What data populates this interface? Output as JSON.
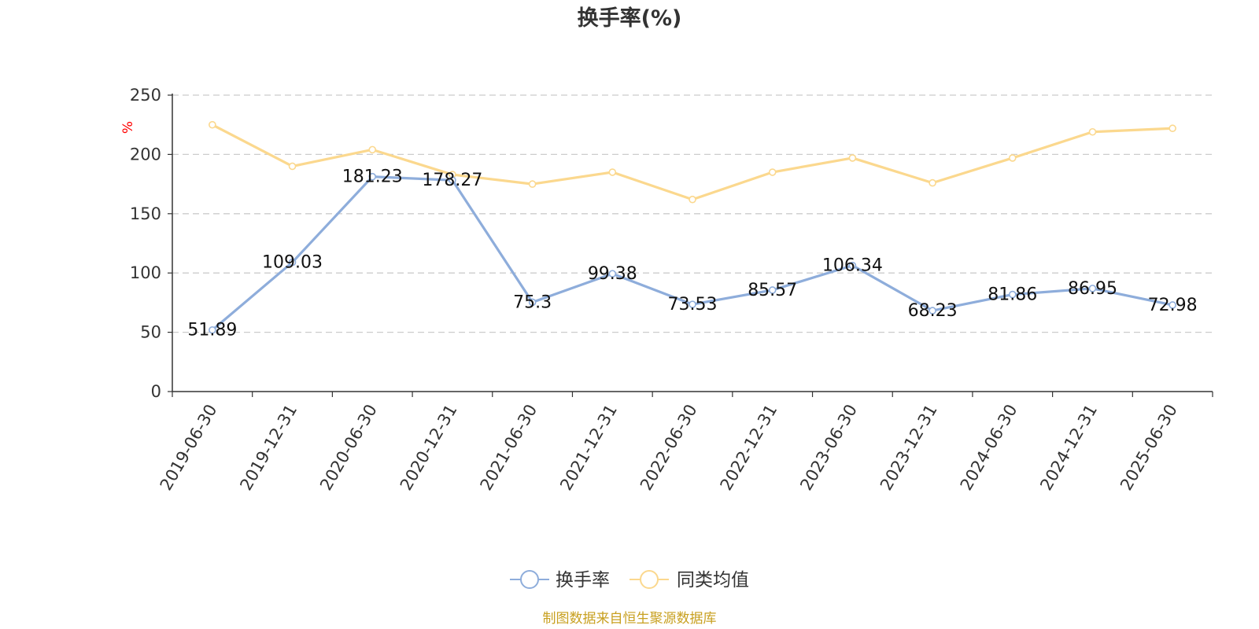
{
  "colors": {
    "series_turnover": "#8eaddb",
    "series_peer_avg": "#fbd88e",
    "axis": "#333333",
    "grid": "#cccccc",
    "unit": "#ff0000",
    "source": "#c8a020"
  },
  "chart_data": {
    "type": "line",
    "title": "换手率(%)",
    "ylabel": "%",
    "xlabel": "",
    "ylim": [
      0,
      250
    ],
    "yticks": [
      0,
      50,
      100,
      150,
      200,
      250
    ],
    "grid": true,
    "legend_position": "bottom-center",
    "categories": [
      "2019-06-30",
      "2019-12-31",
      "2020-06-30",
      "2020-12-31",
      "2021-06-30",
      "2021-12-31",
      "2022-06-30",
      "2022-12-31",
      "2023-06-30",
      "2023-12-31",
      "2024-06-30",
      "2024-12-31",
      "2025-06-30"
    ],
    "series": [
      {
        "name": "换手率",
        "values": [
          51.89,
          109.03,
          181.23,
          178.27,
          75.3,
          99.38,
          73.53,
          85.57,
          106.34,
          68.23,
          81.86,
          86.95,
          72.98
        ],
        "data_labels": [
          "51.89",
          "109.03",
          "181.23",
          "178.27",
          "75.3",
          "99.38",
          "73.53",
          "85.57",
          "106.34",
          "68.23",
          "81.86",
          "86.95",
          "72.98"
        ]
      },
      {
        "name": "同类均值",
        "values": [
          225,
          190,
          204,
          183,
          175,
          185,
          162,
          185,
          197,
          176,
          197,
          219,
          222
        ]
      }
    ]
  },
  "source_note": "制图数据来自恒生聚源数据库"
}
